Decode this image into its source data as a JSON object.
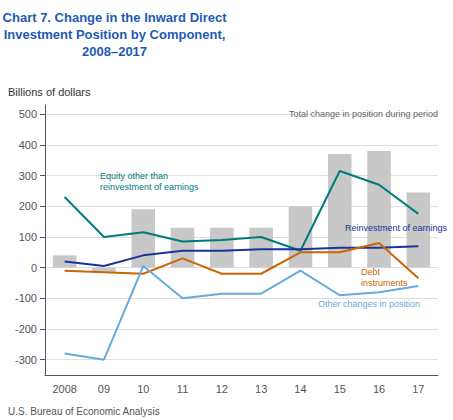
{
  "chart_data": {
    "type": "bar",
    "title": "Chart 7. Change in the Inward Direct\nInvestment Position by Component,\n2008–2017",
    "ylabel": "Billions of dollars",
    "footnote": "U.S. Bureau of Economic Analysis",
    "categories": [
      "2008",
      "09",
      "10",
      "11",
      "12",
      "13",
      "14",
      "15",
      "16",
      "17"
    ],
    "series": [
      {
        "name": "Total change in position during period",
        "type": "bar",
        "color": "#c8c8c8",
        "values": [
          40,
          -15,
          190,
          130,
          130,
          130,
          200,
          370,
          380,
          245
        ]
      },
      {
        "name": "Equity other than\nreinvestment of earnings",
        "type": "line",
        "color": "#007b7b",
        "values": [
          230,
          100,
          115,
          85,
          90,
          100,
          55,
          315,
          270,
          175
        ]
      },
      {
        "name": "Reinvestment of earnings",
        "type": "line",
        "color": "#1a3399",
        "values": [
          20,
          5,
          40,
          55,
          55,
          60,
          60,
          65,
          65,
          70
        ]
      },
      {
        "name": "Debt\ninstruments",
        "type": "line",
        "color": "#cc6600",
        "values": [
          -10,
          -15,
          -20,
          30,
          -20,
          -20,
          50,
          50,
          80,
          -35
        ]
      },
      {
        "name": "Other changes in position",
        "type": "line",
        "color": "#66aadd",
        "values": [
          -280,
          -300,
          5,
          -100,
          -85,
          -85,
          -10,
          -90,
          -80,
          -60
        ]
      }
    ],
    "ylim": [
      -350,
      530
    ],
    "yticks": [
      -300,
      -200,
      -100,
      0,
      100,
      200,
      300,
      400,
      500
    ],
    "grid": true
  }
}
